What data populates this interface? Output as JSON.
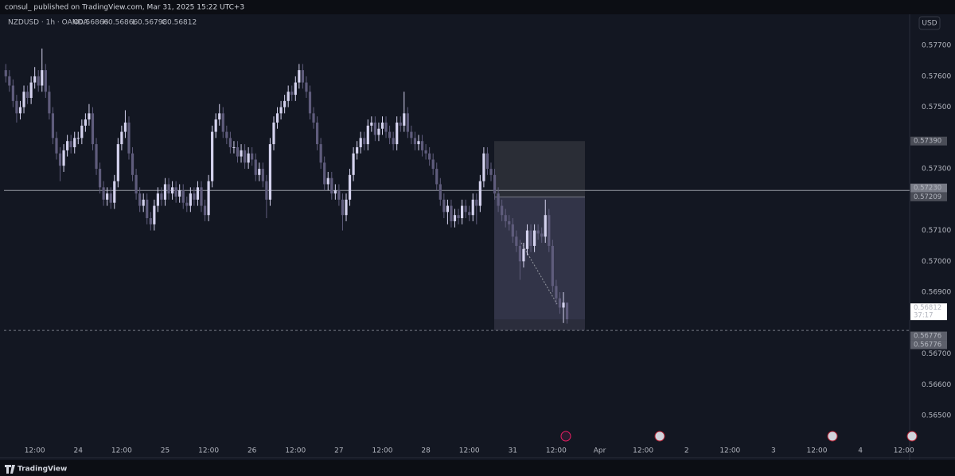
{
  "header": {
    "publisher": "consul_ published on TradingView.com, Mar 31, 2025 15:22 UTC+3"
  },
  "legend": {
    "symbol": "NZDUSD · 1h · OANDA",
    "ohlc": [
      {
        "label": "O",
        "value": 0.56866
      },
      {
        "label": "H",
        "value": 0.56866
      },
      {
        "label": "L",
        "value": 0.56798
      },
      {
        "label": "C",
        "value": 0.56812
      }
    ]
  },
  "currency": "USD",
  "countdown": "37:17",
  "logo": "TradingView",
  "chart_data": {
    "type": "candlestick",
    "up_color": "#d4d2ee",
    "down_color": "#5f5c7c",
    "grid": false,
    "open": [
      0.5762,
      0.576,
      0.5757,
      0.5752,
      0.5748,
      0.575,
      0.5755,
      0.5753,
      0.5758,
      0.576,
      0.5757,
      0.5762,
      0.5755,
      0.5748,
      0.574,
      0.5735,
      0.5731,
      0.5736,
      0.5739,
      0.5737,
      0.574,
      0.574,
      0.5744,
      0.5746,
      0.5748,
      0.5738,
      0.573,
      0.5724,
      0.572,
      0.5722,
      0.5719,
      0.5726,
      0.5738,
      0.5742,
      0.5745,
      0.5735,
      0.5728,
      0.5722,
      0.5718,
      0.572,
      0.5714,
      0.5712,
      0.5718,
      0.5722,
      0.572,
      0.5725,
      0.5722,
      0.5724,
      0.5721,
      0.5723,
      0.5719,
      0.5718,
      0.5722,
      0.572,
      0.5724,
      0.5718,
      0.5715,
      0.5726,
      0.5742,
      0.5746,
      0.5748,
      0.5742,
      0.574,
      0.5737,
      0.5737,
      0.5734,
      0.5736,
      0.5732,
      0.5735,
      0.5733,
      0.5728,
      0.573,
      0.5726,
      0.572,
      0.5738,
      0.5745,
      0.5748,
      0.575,
      0.5752,
      0.5755,
      0.5754,
      0.5758,
      0.5762,
      0.5758,
      0.5755,
      0.5748,
      0.5745,
      0.5738,
      0.5732,
      0.5725,
      0.5727,
      0.5722,
      0.5723,
      0.572,
      0.5715,
      0.572,
      0.5728,
      0.5735,
      0.5737,
      0.574,
      0.5738,
      0.5744,
      0.5745,
      0.5741,
      0.5743,
      0.5745,
      0.5742,
      0.574,
      0.5738,
      0.5745,
      0.5744,
      0.5748,
      0.5742,
      0.574,
      0.5738,
      0.5739,
      0.5736,
      0.5735,
      0.5733,
      0.573,
      0.5725,
      0.572,
      0.5716,
      0.5718,
      0.5713,
      0.5715,
      0.5714,
      0.5718,
      0.5716,
      0.5715,
      0.572,
      0.5718,
      0.5726,
      0.5735,
      0.573,
      0.5728,
      0.5722,
      0.5718,
      0.5715,
      0.5713,
      0.5712,
      0.5708,
      0.5705,
      0.57,
      0.5704,
      0.571,
      0.5705,
      0.571,
      0.5709,
      0.5708,
      0.5715,
      0.5705,
      0.5692,
      0.5688,
      0.5685,
      0.56866
    ],
    "high": [
      0.5764,
      0.5762,
      0.5759,
      0.5754,
      0.5752,
      0.5757,
      0.5757,
      0.576,
      0.5763,
      0.5762,
      0.5769,
      0.5764,
      0.5757,
      0.575,
      0.5742,
      0.5737,
      0.5738,
      0.5741,
      0.5741,
      0.5742,
      0.5742,
      0.5746,
      0.5748,
      0.5751,
      0.575,
      0.574,
      0.5732,
      0.5726,
      0.5724,
      0.5724,
      0.5728,
      0.574,
      0.5744,
      0.5749,
      0.5747,
      0.5737,
      0.573,
      0.5724,
      0.5722,
      0.5722,
      0.5716,
      0.572,
      0.5724,
      0.5724,
      0.5727,
      0.5727,
      0.5726,
      0.5726,
      0.5725,
      0.5725,
      0.5721,
      0.5724,
      0.5724,
      0.5726,
      0.5726,
      0.572,
      0.5728,
      0.5744,
      0.5748,
      0.5751,
      0.575,
      0.5744,
      0.5742,
      0.5739,
      0.5739,
      0.5738,
      0.5738,
      0.5737,
      0.5737,
      0.5735,
      0.5732,
      0.5732,
      0.5728,
      0.574,
      0.5747,
      0.575,
      0.5752,
      0.5754,
      0.5757,
      0.5757,
      0.576,
      0.5764,
      0.5764,
      0.576,
      0.5757,
      0.575,
      0.5747,
      0.574,
      0.5734,
      0.5729,
      0.5729,
      0.5725,
      0.5725,
      0.5722,
      0.5722,
      0.573,
      0.5737,
      0.5739,
      0.5742,
      0.5742,
      0.5746,
      0.5747,
      0.5747,
      0.5745,
      0.5747,
      0.5747,
      0.5744,
      0.5742,
      0.5747,
      0.5747,
      0.5755,
      0.575,
      0.5744,
      0.5742,
      0.5741,
      0.5741,
      0.5738,
      0.5737,
      0.5735,
      0.5732,
      0.5727,
      0.5722,
      0.572,
      0.572,
      0.5717,
      0.5717,
      0.572,
      0.572,
      0.5718,
      0.5722,
      0.5722,
      0.5728,
      0.5737,
      0.5737,
      0.5732,
      0.573,
      0.5724,
      0.572,
      0.5717,
      0.5715,
      0.5714,
      0.571,
      0.5707,
      0.5706,
      0.5712,
      0.5712,
      0.5712,
      0.5712,
      0.5711,
      0.572,
      0.5717,
      0.5707,
      0.5694,
      0.569,
      0.569,
      0.56866
    ],
    "low": [
      0.5758,
      0.5755,
      0.575,
      0.5745,
      0.5746,
      0.5748,
      0.5751,
      0.5751,
      0.5756,
      0.5755,
      0.5755,
      0.5753,
      0.5746,
      0.5738,
      0.5733,
      0.5726,
      0.5729,
      0.5734,
      0.5735,
      0.5735,
      0.5738,
      0.5738,
      0.5742,
      0.5744,
      0.5736,
      0.5728,
      0.5722,
      0.5718,
      0.5718,
      0.5717,
      0.5717,
      0.5724,
      0.5736,
      0.574,
      0.5733,
      0.5726,
      0.572,
      0.5716,
      0.5716,
      0.5712,
      0.571,
      0.571,
      0.5716,
      0.5718,
      0.5718,
      0.572,
      0.572,
      0.5719,
      0.5719,
      0.5717,
      0.5716,
      0.5716,
      0.5718,
      0.5718,
      0.5716,
      0.5713,
      0.5713,
      0.5724,
      0.574,
      0.5744,
      0.574,
      0.5738,
      0.5735,
      0.5735,
      0.5732,
      0.5732,
      0.573,
      0.573,
      0.5731,
      0.5726,
      0.5726,
      0.5724,
      0.5714,
      0.5718,
      0.5736,
      0.5743,
      0.5746,
      0.5748,
      0.575,
      0.5752,
      0.5752,
      0.5756,
      0.5756,
      0.5753,
      0.5746,
      0.5743,
      0.5736,
      0.573,
      0.5723,
      0.5723,
      0.572,
      0.572,
      0.5718,
      0.571,
      0.5713,
      0.5718,
      0.5726,
      0.5733,
      0.5735,
      0.5736,
      0.5736,
      0.5742,
      0.5739,
      0.5739,
      0.5741,
      0.574,
      0.5738,
      0.5736,
      0.5736,
      0.5742,
      0.5742,
      0.574,
      0.5738,
      0.5736,
      0.5736,
      0.5734,
      0.5733,
      0.5731,
      0.5728,
      0.5723,
      0.5718,
      0.5714,
      0.5712,
      0.5711,
      0.5711,
      0.5712,
      0.5712,
      0.5714,
      0.5713,
      0.5713,
      0.5712,
      0.5716,
      0.5724,
      0.5728,
      0.5726,
      0.572,
      0.5716,
      0.5713,
      0.5711,
      0.571,
      0.5706,
      0.5703,
      0.5694,
      0.5698,
      0.5702,
      0.5703,
      0.5703,
      0.5707,
      0.5706,
      0.5706,
      0.5703,
      0.569,
      0.5686,
      0.5683,
      0.568,
      0.56798
    ],
    "close": [
      0.576,
      0.5757,
      0.5752,
      0.5748,
      0.575,
      0.5755,
      0.5753,
      0.5758,
      0.576,
      0.5757,
      0.5762,
      0.5755,
      0.5748,
      0.574,
      0.5735,
      0.5731,
      0.5736,
      0.5739,
      0.5737,
      0.574,
      0.574,
      0.5744,
      0.5746,
      0.5748,
      0.5738,
      0.573,
      0.5724,
      0.572,
      0.5722,
      0.5719,
      0.5726,
      0.5738,
      0.5742,
      0.5745,
      0.5735,
      0.5728,
      0.5722,
      0.5718,
      0.572,
      0.5714,
      0.5712,
      0.5718,
      0.5722,
      0.572,
      0.5725,
      0.5722,
      0.5724,
      0.5721,
      0.5723,
      0.5719,
      0.5718,
      0.5722,
      0.572,
      0.5724,
      0.5718,
      0.5715,
      0.5726,
      0.5742,
      0.5746,
      0.5748,
      0.5742,
      0.574,
      0.5737,
      0.5737,
      0.5734,
      0.5736,
      0.5732,
      0.5735,
      0.5733,
      0.5728,
      0.573,
      0.5726,
      0.572,
      0.5738,
      0.5745,
      0.5748,
      0.575,
      0.5752,
      0.5755,
      0.5754,
      0.5758,
      0.5762,
      0.5758,
      0.5755,
      0.5748,
      0.5745,
      0.5738,
      0.5732,
      0.5725,
      0.5727,
      0.5722,
      0.5723,
      0.572,
      0.5715,
      0.572,
      0.5728,
      0.5735,
      0.5737,
      0.574,
      0.5738,
      0.5744,
      0.5745,
      0.5741,
      0.5743,
      0.5745,
      0.5742,
      0.574,
      0.5738,
      0.5745,
      0.5744,
      0.5748,
      0.5742,
      0.574,
      0.5738,
      0.5739,
      0.5736,
      0.5735,
      0.5733,
      0.573,
      0.5725,
      0.572,
      0.5716,
      0.5718,
      0.5713,
      0.5715,
      0.5714,
      0.5718,
      0.5716,
      0.5715,
      0.572,
      0.5718,
      0.5726,
      0.5735,
      0.573,
      0.5728,
      0.5722,
      0.5718,
      0.5715,
      0.5713,
      0.5712,
      0.5708,
      0.5705,
      0.57,
      0.5704,
      0.571,
      0.5705,
      0.571,
      0.5709,
      0.5708,
      0.5715,
      0.5705,
      0.5692,
      0.5688,
      0.5685,
      0.56866,
      0.56812
    ],
    "xlim": [
      -0.5,
      249.6
    ],
    "xticks": [
      {
        "value": 8,
        "label": "12:00"
      },
      {
        "value": 20,
        "label": "24"
      },
      {
        "value": 32,
        "label": "12:00"
      },
      {
        "value": 44,
        "label": "25"
      },
      {
        "value": 56,
        "label": "12:00"
      },
      {
        "value": 68,
        "label": "26"
      },
      {
        "value": 80,
        "label": "12:00"
      },
      {
        "value": 92,
        "label": "27"
      },
      {
        "value": 104,
        "label": "12:00"
      },
      {
        "value": 116,
        "label": "28"
      },
      {
        "value": 128,
        "label": "12:00"
      },
      {
        "value": 140,
        "label": "31"
      },
      {
        "value": 152,
        "label": "12:00"
      },
      {
        "value": 164,
        "label": "Apr"
      },
      {
        "value": 176,
        "label": "12:00"
      },
      {
        "value": 188,
        "label": "2"
      },
      {
        "value": 200,
        "label": "12:00"
      },
      {
        "value": 212,
        "label": "3"
      },
      {
        "value": 224,
        "label": "12:00"
      },
      {
        "value": 236,
        "label": "4"
      },
      {
        "value": 248,
        "label": "12:00"
      }
    ],
    "ylim": [
      0.56389,
      0.57801
    ],
    "yticks": [
      {
        "value": 0.577,
        "label": "0.57700"
      },
      {
        "value": 0.576,
        "label": "0.57600"
      },
      {
        "value": 0.575,
        "label": "0.57500"
      },
      {
        "value": 0.573,
        "label": "0.57300"
      },
      {
        "value": 0.571,
        "label": "0.57100"
      },
      {
        "value": 0.57,
        "label": "0.57000"
      },
      {
        "value": 0.569,
        "label": "0.56900"
      },
      {
        "value": 0.567,
        "label": "0.56700"
      },
      {
        "value": 0.566,
        "label": "0.56600"
      },
      {
        "value": 0.565,
        "label": "0.56500"
      }
    ],
    "horizontal_line": {
      "value": 0.5723,
      "label": "0.57230"
    },
    "position": {
      "stop": {
        "value": 0.5739,
        "label": "0.57390"
      },
      "entry": 0.57209,
      "target": 0.56776
    },
    "dashed_line": 0.56776,
    "current_price": 0.56812
  }
}
